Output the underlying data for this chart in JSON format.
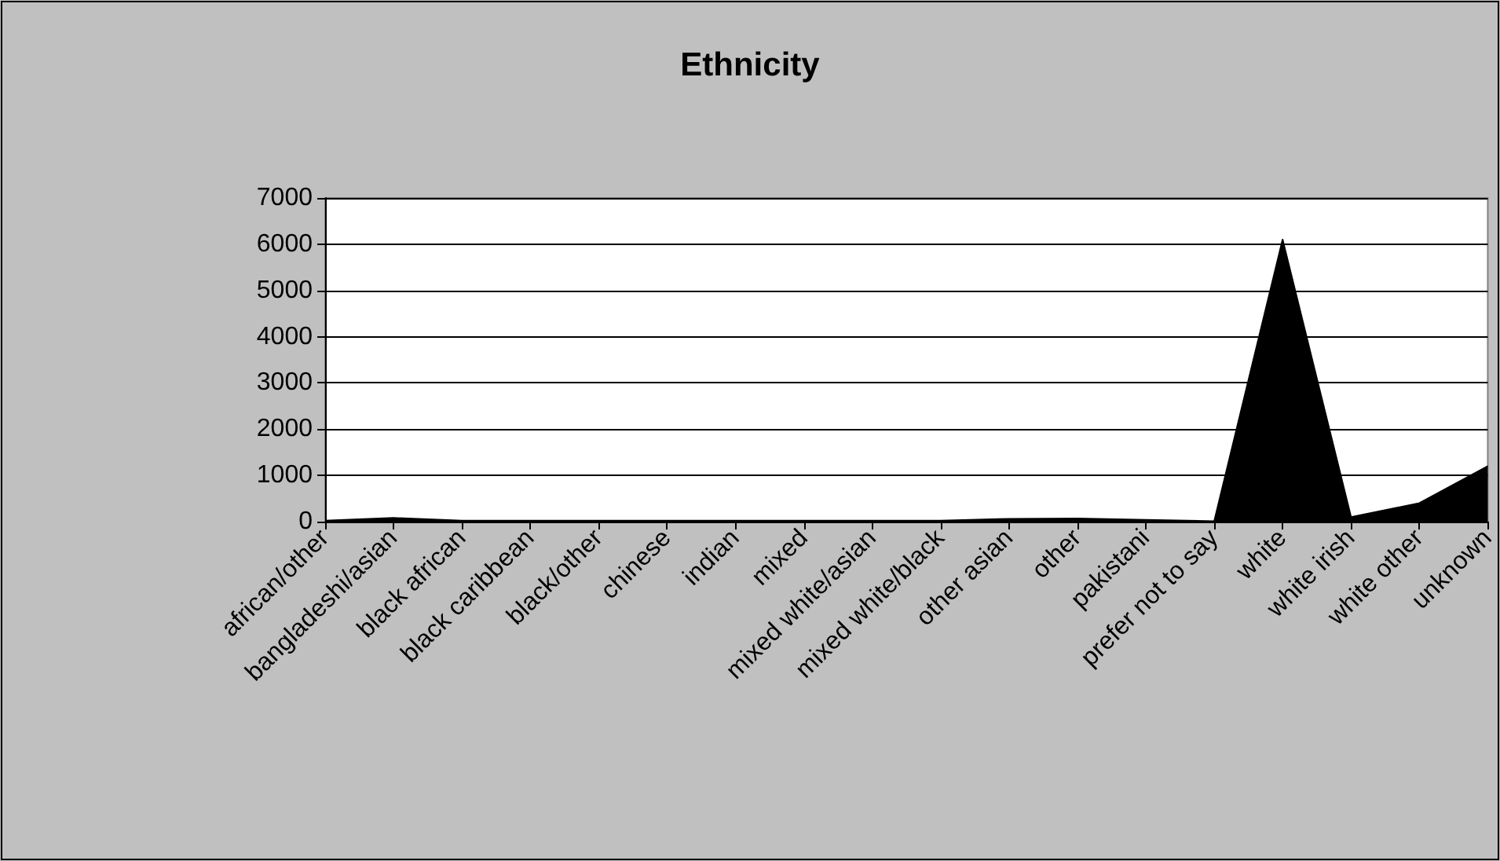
{
  "chart_data": {
    "type": "area",
    "title": "Ethnicity",
    "categories": [
      "african/other",
      "bangladeshi/asian",
      "black african",
      "black caribbean",
      "black/other",
      "chinese",
      "indian",
      "mixed",
      "mixed white/asian",
      "mixed white/black",
      "other asian",
      "other",
      "pakistani",
      "prefer not to say",
      "white",
      "white irish",
      "white other",
      "unknown"
    ],
    "series": [
      {
        "color": "#000000",
        "values": [
          20,
          80,
          20,
          20,
          20,
          20,
          20,
          20,
          20,
          20,
          60,
          70,
          40,
          10,
          6100,
          100,
          400,
          1200
        ]
      }
    ],
    "ylim": [
      0,
      7000
    ],
    "yticks": [
      0,
      1000,
      2000,
      3000,
      4000,
      5000,
      6000,
      7000
    ],
    "grid": "y"
  }
}
